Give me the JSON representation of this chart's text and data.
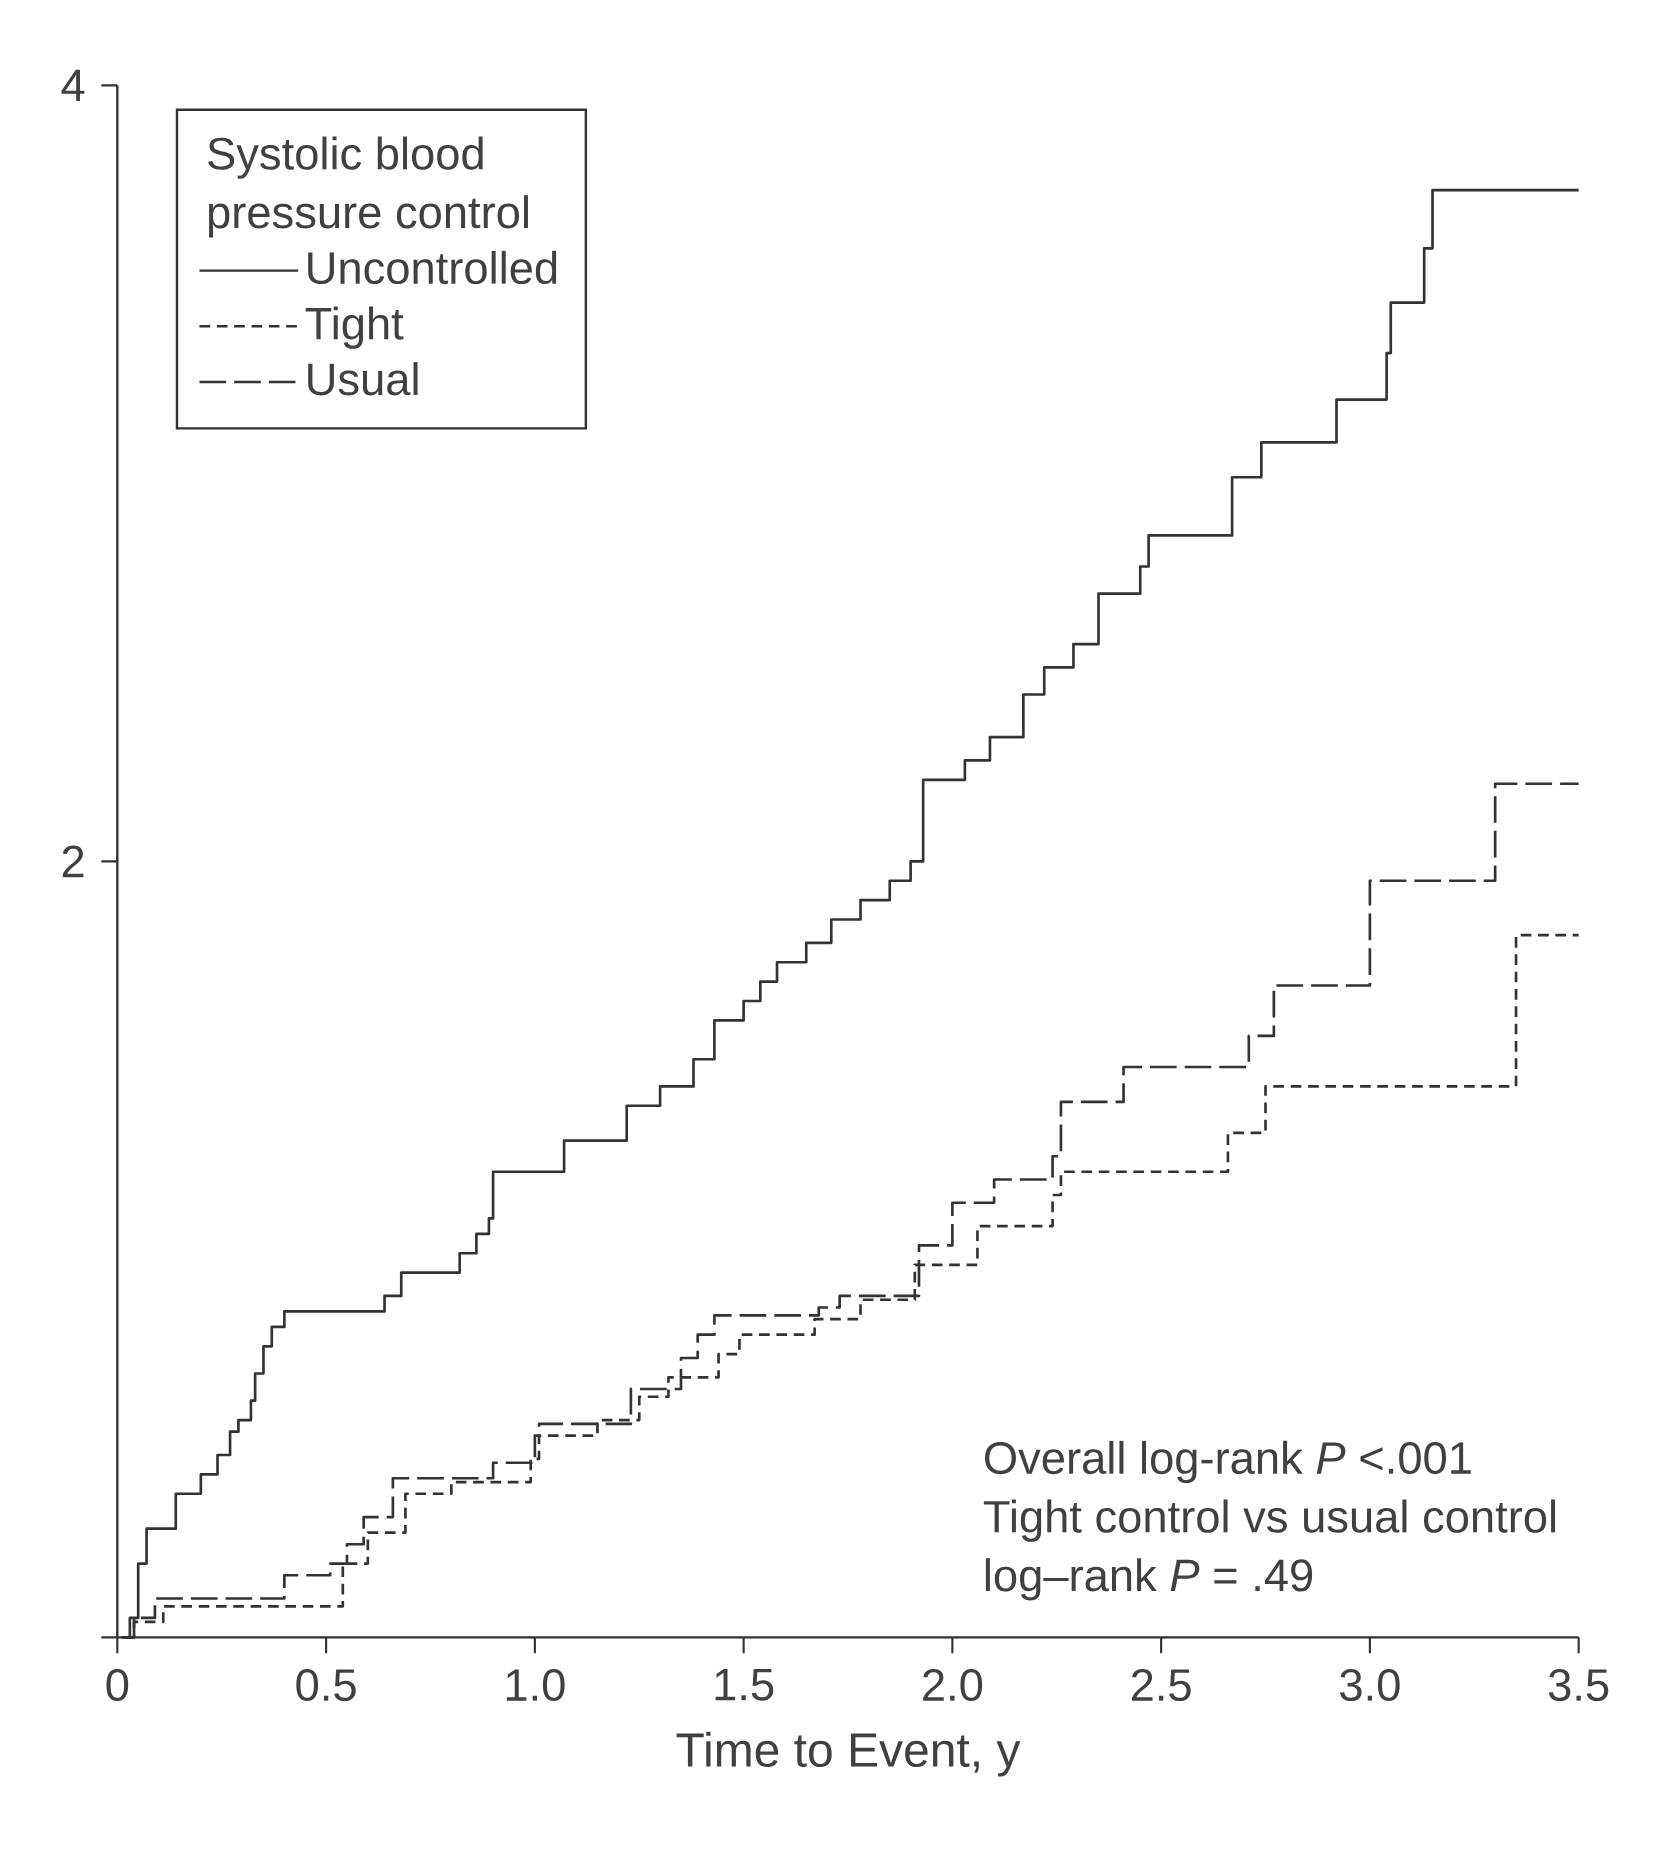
{
  "chart_data": {
    "type": "step",
    "xlabel": "Time to Event, y",
    "legend_title": "Systolic blood pressure control",
    "legend": "top left",
    "grid": false,
    "xlim": [
      0,
      3.5
    ],
    "ylim": [
      0,
      4
    ],
    "xticks": [
      0,
      0.5,
      {
        "value": 1,
        "label": "1.0"
      },
      1.5,
      {
        "value": 2,
        "label": "2.0"
      },
      2.5,
      {
        "value": 3,
        "label": "3.0"
      },
      3.5
    ],
    "yticks": [
      {
        "value": 0,
        "label": null
      },
      2,
      4
    ],
    "annotations": [
      "Overall log-rank *P* <.001",
      "Tight control vs usual control",
      "log–rank *P* = .49"
    ],
    "series": [
      {
        "name": "Uncontrolled",
        "color": "#333333",
        "line_style": "solid",
        "x": [
          0.01,
          0.03,
          0.05,
          0.07,
          0.14,
          0.2,
          0.24,
          0.27,
          0.29,
          0.32,
          0.33,
          0.35,
          0.37,
          0.4,
          0.64,
          0.68,
          0.82,
          0.86,
          0.89,
          0.9,
          1.07,
          1.22,
          1.3,
          1.38,
          1.43,
          1.5,
          1.54,
          1.58,
          1.65,
          1.71,
          1.78,
          1.85,
          1.9,
          1.93,
          2.03,
          2.09,
          2.17,
          2.22,
          2.29,
          2.35,
          2.45,
          2.47,
          2.67,
          2.74,
          2.92,
          3.04,
          3.05,
          3.13,
          3.15,
          3.5
        ],
        "values": [
          0,
          0.05,
          0.19,
          0.28,
          0.37,
          0.42,
          0.47,
          0.53,
          0.56,
          0.61,
          0.68,
          0.75,
          0.8,
          0.84,
          0.88,
          0.94,
          0.99,
          1.04,
          1.08,
          1.2,
          1.28,
          1.37,
          1.42,
          1.49,
          1.59,
          1.64,
          1.69,
          1.74,
          1.79,
          1.85,
          1.9,
          1.95,
          2.0,
          2.21,
          2.26,
          2.32,
          2.43,
          2.5,
          2.56,
          2.69,
          2.76,
          2.84,
          2.99,
          3.08,
          3.19,
          3.31,
          3.44,
          3.58,
          3.73,
          3.73
        ]
      },
      {
        "name": "Tight",
        "color": "#333333",
        "line_style": "dashed",
        "x": [
          0.02,
          0.04,
          0.11,
          0.54,
          0.6,
          0.69,
          0.8,
          0.99,
          1.01,
          1.15,
          1.25,
          1.32,
          1.44,
          1.49,
          1.67,
          1.78,
          1.91,
          2.06,
          2.24,
          2.26,
          2.66,
          2.75,
          3.35,
          3.5
        ],
        "values": [
          0,
          0.04,
          0.08,
          0.19,
          0.27,
          0.37,
          0.4,
          0.46,
          0.52,
          0.56,
          0.62,
          0.67,
          0.73,
          0.78,
          0.82,
          0.87,
          0.96,
          1.06,
          1.14,
          1.2,
          1.3,
          1.42,
          1.81,
          1.81
        ]
      },
      {
        "name": "Usual",
        "color": "#333333",
        "line_style": "long dashed",
        "x": [
          0.02,
          0.04,
          0.09,
          0.4,
          0.51,
          0.55,
          0.59,
          0.66,
          0.9,
          1.0,
          1.01,
          1.23,
          1.35,
          1.39,
          1.43,
          1.68,
          1.73,
          1.92,
          2.0,
          2.1,
          2.24,
          2.26,
          2.41,
          2.71,
          2.77,
          3.0,
          3.3,
          3.5
        ],
        "values": [
          0,
          0.05,
          0.1,
          0.16,
          0.19,
          0.24,
          0.31,
          0.41,
          0.45,
          0.52,
          0.55,
          0.64,
          0.72,
          0.78,
          0.83,
          0.85,
          0.88,
          1.01,
          1.12,
          1.18,
          1.24,
          1.38,
          1.47,
          1.55,
          1.68,
          1.95,
          2.2,
          2.2
        ]
      }
    ]
  }
}
